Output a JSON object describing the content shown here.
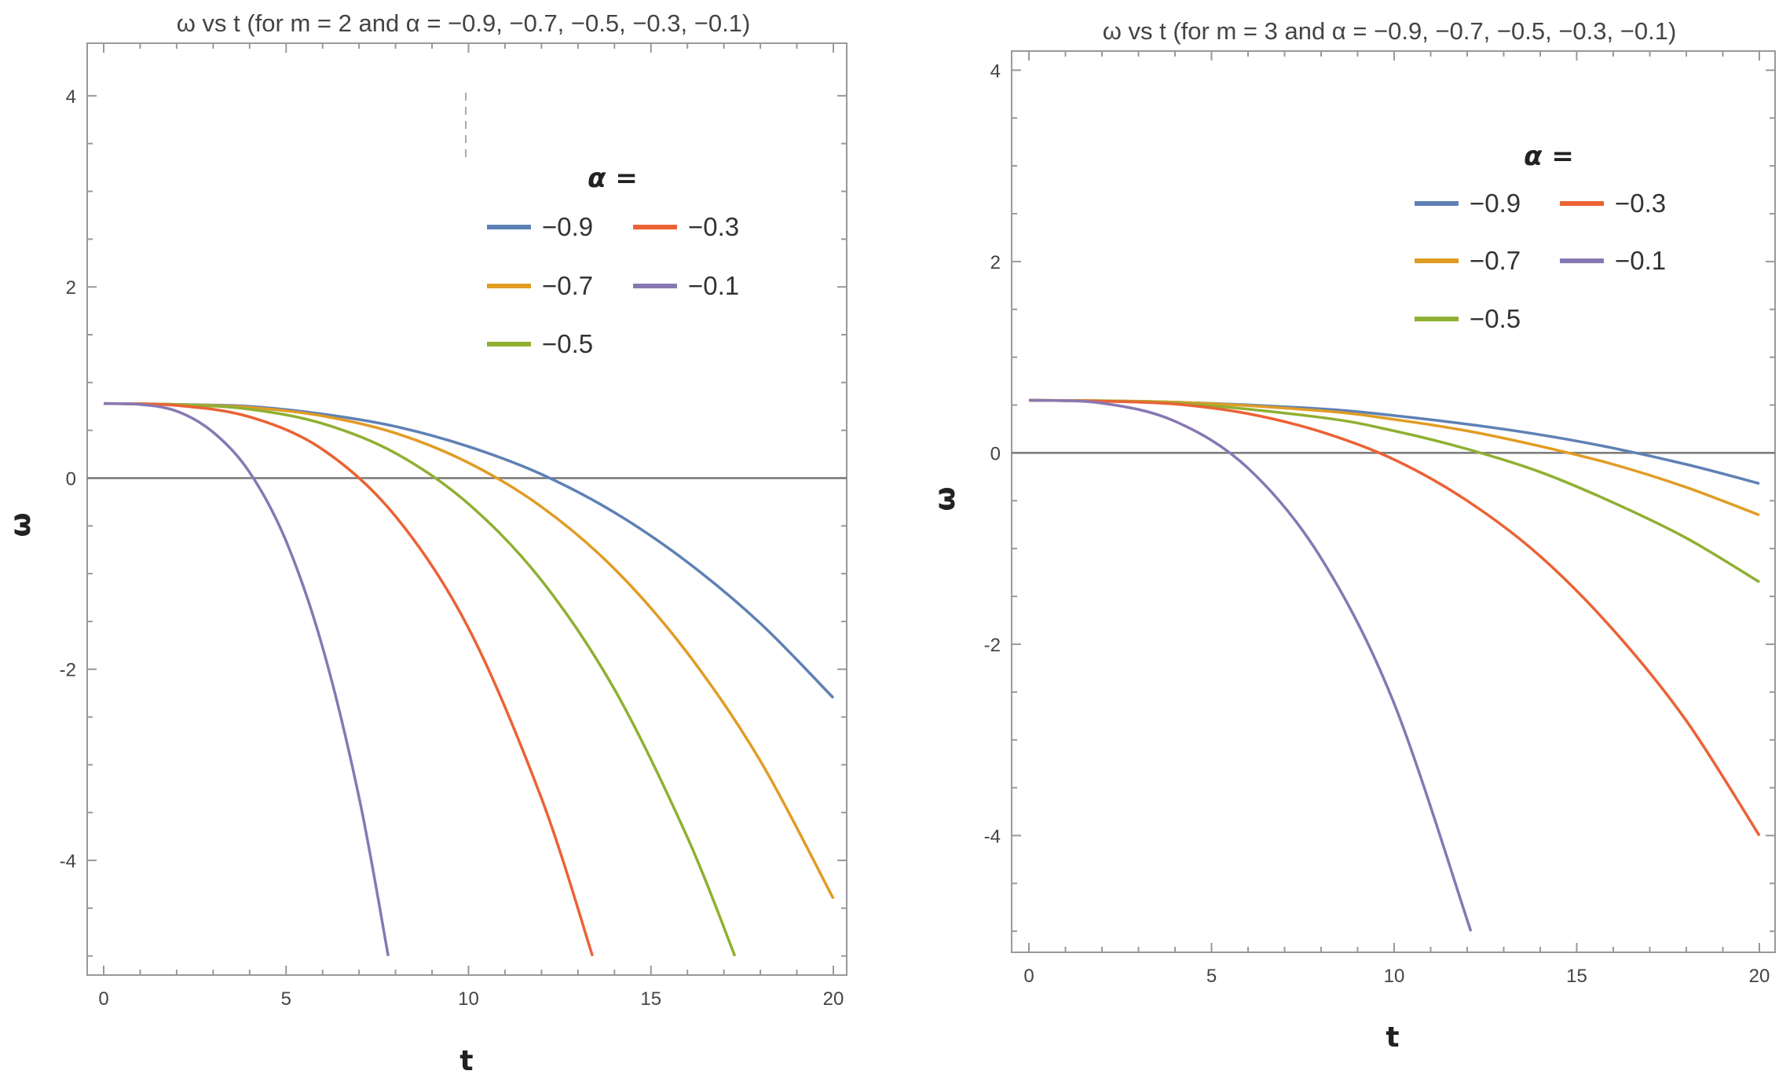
{
  "chart_data": [
    {
      "type": "line",
      "title": "ω vs t (for m = 2 and α = −0.9, −0.7, −0.5, −0.3, −0.1)",
      "xlabel": "t",
      "ylabel": "ω",
      "xlim": [
        0,
        20
      ],
      "ylim": [
        -5.2,
        4.55
      ],
      "xticks": [
        0,
        5,
        10,
        15,
        20
      ],
      "yticks": [
        -4,
        -2,
        0,
        2,
        4
      ],
      "grid": false,
      "legend_title": "α =",
      "legend_placement": "top-right",
      "series": [
        {
          "name": "−0.9",
          "color": "#5E81B5",
          "x": [
            0,
            2,
            4,
            6,
            8,
            10,
            12,
            14,
            16,
            18,
            20
          ],
          "y": [
            0.78,
            0.77,
            0.75,
            0.67,
            0.54,
            0.33,
            0.04,
            -0.36,
            -0.88,
            -1.52,
            -2.3
          ]
        },
        {
          "name": "−0.7",
          "color": "#E19C24",
          "x": [
            0,
            2,
            4,
            6,
            8,
            10,
            12,
            14,
            16,
            18,
            20
          ],
          "y": [
            0.78,
            0.77,
            0.74,
            0.65,
            0.47,
            0.16,
            -0.3,
            -0.95,
            -1.83,
            -2.96,
            -4.4
          ]
        },
        {
          "name": "−0.5",
          "color": "#8FB032",
          "x": [
            0,
            2,
            4,
            6,
            8,
            10,
            12,
            14,
            16,
            17.3
          ],
          "y": [
            0.78,
            0.77,
            0.72,
            0.57,
            0.26,
            -0.27,
            -1.07,
            -2.21,
            -3.76,
            -5
          ]
        },
        {
          "name": "−0.3",
          "color": "#EB6235",
          "x": [
            0,
            2,
            4,
            6,
            8,
            10,
            12,
            13.4
          ],
          "y": [
            0.78,
            0.76,
            0.64,
            0.3,
            -0.4,
            -1.57,
            -3.35,
            -5
          ]
        },
        {
          "name": "−0.1",
          "color": "#8778B3",
          "x": [
            0,
            1,
            2,
            3,
            4,
            5,
            6,
            7,
            7.8
          ],
          "y": [
            0.78,
            0.77,
            0.7,
            0.48,
            0.06,
            -0.66,
            -1.77,
            -3.34,
            -5
          ]
        }
      ]
    },
    {
      "type": "line",
      "title": "ω vs t (for m = 3 and α = −0.9, −0.7, −0.5, −0.3, −0.1)",
      "xlabel": "t",
      "ylabel": "ω",
      "xlim": [
        0,
        20
      ],
      "ylim": [
        -5.22,
        4.2
      ],
      "xticks": [
        0,
        5,
        10,
        15,
        20
      ],
      "yticks": [
        -4,
        -2,
        0,
        2,
        4
      ],
      "grid": false,
      "legend_title": "α =",
      "legend_placement": "top-right",
      "series": [
        {
          "name": "−0.9",
          "color": "#5E81B5",
          "x": [
            0,
            4,
            8,
            10,
            12,
            14,
            16,
            18,
            20
          ],
          "y": [
            0.55,
            0.53,
            0.46,
            0.39,
            0.3,
            0.19,
            0.05,
            -0.12,
            -0.32
          ]
        },
        {
          "name": "−0.7",
          "color": "#E19C24",
          "x": [
            0,
            4,
            8,
            10,
            12,
            14,
            16,
            18,
            20
          ],
          "y": [
            0.55,
            0.53,
            0.44,
            0.35,
            0.23,
            0.07,
            -0.12,
            -0.36,
            -0.65
          ]
        },
        {
          "name": "−0.5",
          "color": "#8FB032",
          "x": [
            0,
            4,
            8,
            10,
            12,
            14,
            16,
            18,
            20
          ],
          "y": [
            0.55,
            0.52,
            0.37,
            0.23,
            0.04,
            -0.2,
            -0.52,
            -0.89,
            -1.35
          ]
        },
        {
          "name": "−0.3",
          "color": "#EB6235",
          "x": [
            0,
            2,
            4,
            6,
            8,
            10,
            12,
            14,
            16,
            18,
            20
          ],
          "y": [
            0.55,
            0.54,
            0.51,
            0.41,
            0.22,
            -0.07,
            -0.5,
            -1.08,
            -1.85,
            -2.8,
            -4.0
          ]
        },
        {
          "name": "−0.1",
          "color": "#8778B3",
          "x": [
            0,
            2,
            4,
            6,
            8,
            10,
            12.1
          ],
          "y": [
            0.55,
            0.52,
            0.33,
            -0.16,
            -1.1,
            -2.62,
            -5
          ]
        }
      ]
    }
  ]
}
